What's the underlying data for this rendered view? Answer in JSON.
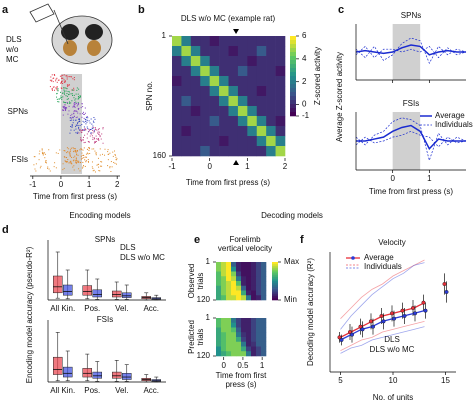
{
  "chart_data": [
    {
      "type": "raster",
      "panel": "a",
      "group_label": [
        "DLS",
        "w/o",
        "MC"
      ],
      "row_labels": [
        "SPNs",
        "FSIs"
      ],
      "xlabel": "Time from first press (s)",
      "xlim": [
        -1.1,
        2.1
      ],
      "xticks": [
        -1,
        0,
        1,
        2
      ],
      "shaded": [
        0,
        0.75
      ]
    },
    {
      "type": "heatmap",
      "panel": "b",
      "title": "DLS w/o MC (example rat)",
      "ylabel": "SPN no.",
      "xlabel": "Time from first press (s)",
      "xlim": [
        -1,
        2
      ],
      "xticks": [
        -1,
        0,
        1,
        2
      ],
      "ylim": [
        1,
        160
      ],
      "yticks": [
        1,
        160
      ],
      "marker_x": 0.7,
      "clabel": "Z-scored activity",
      "clim": [
        -1,
        6
      ],
      "cticks": [
        -1,
        0,
        2,
        4,
        6
      ],
      "z": [
        [
          5,
          2,
          0,
          0,
          -0.5,
          0,
          0,
          0,
          0,
          0,
          0,
          0
        ],
        [
          2,
          5,
          2,
          0,
          0,
          0,
          -0.5,
          0,
          0,
          1,
          0,
          0
        ],
        [
          0,
          2,
          5,
          2,
          0,
          0,
          0,
          0,
          -0.5,
          0,
          0,
          0
        ],
        [
          0,
          0,
          2,
          5,
          2,
          0,
          0,
          1,
          0,
          0,
          0,
          -0.5
        ],
        [
          -0.5,
          0,
          0,
          2,
          5,
          2,
          0,
          0,
          0,
          0,
          0,
          0
        ],
        [
          0,
          0,
          0,
          0,
          2,
          5,
          2,
          0,
          0,
          -0.5,
          0,
          0
        ],
        [
          0,
          1,
          0,
          0,
          0,
          2,
          5,
          2,
          0,
          0,
          0,
          0
        ],
        [
          0,
          0,
          -0.5,
          0,
          0,
          0,
          2,
          5,
          2,
          0,
          0,
          0
        ],
        [
          0,
          0,
          0,
          0,
          1,
          0,
          0,
          2,
          5,
          2,
          0,
          -0.5
        ],
        [
          0,
          -0.5,
          0,
          0,
          0,
          0,
          0,
          0,
          2,
          5,
          2,
          0
        ],
        [
          0,
          0,
          0,
          0,
          0,
          -0.5,
          0,
          0,
          0,
          2,
          5,
          2
        ],
        [
          0,
          0,
          0,
          1,
          0,
          0,
          0,
          0,
          0,
          0,
          2,
          5
        ]
      ]
    },
    {
      "type": "line",
      "panel": "c",
      "ylabel": "Average Z-scored activity",
      "xlabel": "Time from first press (s)",
      "xlim": [
        -1,
        2
      ],
      "xticks": [
        0,
        1
      ],
      "shaded": [
        0,
        0.75
      ],
      "x": [
        -1,
        -0.75,
        -0.5,
        -0.25,
        0,
        0.25,
        0.5,
        0.75,
        1,
        1.25,
        1.5,
        1.75,
        2
      ],
      "subplots": [
        {
          "title": "SPNs",
          "ylim": [
            -1,
            1
          ],
          "series": [
            {
              "color": "#1a2bd0",
              "style": "solid",
              "values": [
                0,
                0.05,
                0,
                -0.05,
                0,
                0.15,
                0.25,
                0.2,
                -0.1,
                0,
                0.05,
                0,
                0
              ]
            },
            {
              "color": "#1a2bd0",
              "style": "dashed",
              "values": [
                0.1,
                -0.2,
                0.2,
                -0.3,
                -0.1,
                0.3,
                0.5,
                0.4,
                -0.4,
                0.2,
                -0.1,
                0.1,
                0
              ]
            },
            {
              "color": "#1a2bd0",
              "style": "dashed",
              "values": [
                -0.1,
                0.2,
                -0.2,
                0.1,
                0.1,
                0,
                0.1,
                0,
                0.2,
                -0.2,
                0.15,
                -0.1,
                0
              ]
            }
          ]
        },
        {
          "title": "FSIs",
          "ylim": [
            -1.5,
            1.5
          ],
          "series": [
            {
              "name": "Average",
              "color": "#1a2bd0",
              "style": "solid",
              "values": [
                0,
                0,
                0.1,
                0.2,
                0.5,
                0.7,
                0.8,
                0.5,
                -0.4,
                0.1,
                0,
                0,
                0
              ]
            },
            {
              "name": "Individuals",
              "color": "#1a2bd0",
              "style": "dashed",
              "values": [
                0.2,
                -0.2,
                0.3,
                0.5,
                1.0,
                1.2,
                1.1,
                0.8,
                -1.0,
                0.4,
                -0.2,
                0.2,
                0
              ]
            },
            {
              "color": "#1a2bd0",
              "style": "dashed",
              "values": [
                -0.2,
                0.2,
                -0.1,
                0,
                0.2,
                0.3,
                0.5,
                0.3,
                0.2,
                -0.3,
                0.2,
                -0.1,
                0
              ]
            }
          ]
        }
      ]
    },
    {
      "type": "box",
      "panel": "d",
      "section": "Encoding models",
      "ylabel": "Encoding model accuracy (pseudo-R²)",
      "ylim": [
        0,
        1
      ],
      "categories": [
        "All Kin.",
        "Pos.",
        "Vel.",
        "Acc."
      ],
      "subplots": [
        {
          "title": "SPNs",
          "series": [
            {
              "name": "DLS",
              "color": "#e8404a",
              "boxes": [
                [
                  0.03,
                  0.12,
                  0.22,
                  0.4,
                  0.8
                ],
                [
                  0.02,
                  0.08,
                  0.14,
                  0.24,
                  0.5
                ],
                [
                  0.01,
                  0.05,
                  0.09,
                  0.15,
                  0.3
                ],
                [
                  0,
                  0.02,
                  0.04,
                  0.06,
                  0.12
                ]
              ]
            },
            {
              "name": "DLS w/o MC",
              "color": "#3b4be0",
              "boxes": [
                [
                  0.02,
                  0.08,
                  0.14,
                  0.25,
                  0.5
                ],
                [
                  0.01,
                  0.05,
                  0.09,
                  0.17,
                  0.35
                ],
                [
                  0.01,
                  0.04,
                  0.07,
                  0.12,
                  0.25
                ],
                [
                  0,
                  0.01,
                  0.02,
                  0.04,
                  0.08
                ]
              ]
            }
          ]
        },
        {
          "title": "FSIs",
          "series": [
            {
              "color": "#e8404a",
              "boxes": [
                [
                  0.02,
                  0.12,
                  0.2,
                  0.4,
                  0.8
                ],
                [
                  0.02,
                  0.08,
                  0.14,
                  0.22,
                  0.45
                ],
                [
                  0.01,
                  0.06,
                  0.1,
                  0.16,
                  0.35
                ],
                [
                  0,
                  0.02,
                  0.04,
                  0.06,
                  0.12
                ]
              ]
            },
            {
              "color": "#3b4be0",
              "boxes": [
                [
                  0.02,
                  0.08,
                  0.14,
                  0.24,
                  0.5
                ],
                [
                  0.01,
                  0.06,
                  0.1,
                  0.16,
                  0.33
                ],
                [
                  0.01,
                  0.04,
                  0.08,
                  0.14,
                  0.28
                ],
                [
                  0,
                  0.01,
                  0.02,
                  0.04,
                  0.08
                ]
              ]
            }
          ]
        }
      ]
    },
    {
      "type": "heatmap-stack",
      "panel": "e",
      "section": "Decoding models",
      "title": [
        "Forelimb",
        "vertical velocity"
      ],
      "xlabel": [
        "Time from first",
        "press (s)"
      ],
      "xlim": [
        -0.2,
        1.1
      ],
      "xticks": [
        0,
        0.5,
        1
      ],
      "ylim": [
        1,
        120
      ],
      "yticks": [
        1,
        120
      ],
      "clim": [
        0,
        1
      ],
      "cticks": [
        {
          "value": 1,
          "label": "Max"
        },
        {
          "value": 0,
          "label": "Min"
        }
      ],
      "subplots": [
        {
          "ylabel": [
            "Observed",
            "trials"
          ],
          "z": [
            [
              0.8,
              0.9,
              1,
              0.3,
              0.1,
              0.05,
              0.05,
              0.1,
              0.2,
              0.3
            ],
            [
              0.8,
              0.9,
              1,
              0.5,
              0.1,
              0.05,
              0.05,
              0.1,
              0.2,
              0.3
            ],
            [
              0.7,
              0.9,
              1,
              0.8,
              0.2,
              0.05,
              0.05,
              0.1,
              0.2,
              0.3
            ],
            [
              0.7,
              0.8,
              1,
              0.9,
              0.4,
              0.1,
              0.05,
              0.1,
              0.2,
              0.3
            ],
            [
              0.7,
              0.8,
              0.9,
              1,
              0.7,
              0.1,
              0.05,
              0.1,
              0.2,
              0.3
            ],
            [
              0.6,
              0.8,
              0.9,
              1,
              0.9,
              0.3,
              0.05,
              0.1,
              0.2,
              0.3
            ],
            [
              0.6,
              0.8,
              0.9,
              1,
              1,
              0.6,
              0.1,
              0.05,
              0.2,
              0.3
            ],
            [
              0.6,
              0.7,
              0.9,
              0.9,
              1,
              0.9,
              0.4,
              0.05,
              0.1,
              0.3
            ]
          ]
        },
        {
          "ylabel": [
            "Predicted",
            "trials"
          ],
          "z": [
            [
              0.7,
              0.8,
              0.8,
              0.4,
              0.2,
              0.1,
              0.1,
              0.2,
              0.3,
              0.3
            ],
            [
              0.7,
              0.8,
              0.8,
              0.5,
              0.2,
              0.1,
              0.1,
              0.2,
              0.3,
              0.3
            ],
            [
              0.6,
              0.8,
              0.8,
              0.7,
              0.3,
              0.1,
              0.1,
              0.2,
              0.3,
              0.3
            ],
            [
              0.6,
              0.7,
              0.8,
              0.8,
              0.4,
              0.15,
              0.1,
              0.2,
              0.3,
              0.3
            ],
            [
              0.6,
              0.7,
              0.8,
              0.8,
              0.6,
              0.2,
              0.1,
              0.2,
              0.3,
              0.3
            ],
            [
              0.6,
              0.7,
              0.8,
              0.8,
              0.8,
              0.4,
              0.1,
              0.15,
              0.3,
              0.3
            ],
            [
              0.5,
              0.7,
              0.8,
              0.8,
              0.8,
              0.6,
              0.2,
              0.1,
              0.2,
              0.3
            ],
            [
              0.5,
              0.6,
              0.7,
              0.8,
              0.8,
              0.8,
              0.4,
              0.1,
              0.2,
              0.3
            ]
          ]
        }
      ]
    },
    {
      "type": "errorbar-line",
      "panel": "f",
      "title": "Velocity",
      "ylabel": "Decoding model accuracy (R²)",
      "xlabel": "No. of units",
      "legend": [
        "Average",
        "Individuals"
      ],
      "xlim": [
        4,
        16
      ],
      "xticks": [
        5,
        10,
        15
      ],
      "ylim": [
        0,
        0.45
      ],
      "x": [
        5,
        6,
        7,
        8,
        9,
        10,
        11,
        12,
        13,
        14,
        15
      ],
      "series": [
        {
          "name": "DLS",
          "color": "#e8303a",
          "values": [
            0.13,
            0.15,
            0.17,
            0.19,
            0.21,
            0.22,
            0.23,
            0.24,
            0.26,
            null,
            0.33
          ],
          "errors": [
            0.02,
            0.03,
            0.03,
            0.03,
            0.03,
            0.03,
            0.03,
            0.03,
            0.03,
            null,
            0.04
          ],
          "individuals": [
            [
              0.2,
              0.24,
              0.28,
              0.31,
              0.33,
              0.36,
              0.38,
              0.4,
              0.42,
              null,
              null
            ],
            [
              0.08,
              0.1,
              0.12,
              0.13,
              0.15,
              0.16,
              0.17,
              0.18,
              0.19,
              null,
              null
            ]
          ]
        },
        {
          "name": "DLS w/o MC",
          "color": "#2b3bd6",
          "values": [
            0.12,
            0.14,
            0.16,
            0.17,
            0.19,
            0.2,
            0.21,
            0.22,
            0.23,
            null,
            0.3
          ],
          "errors": [
            0.02,
            0.03,
            0.03,
            0.03,
            0.03,
            0.03,
            0.03,
            0.03,
            0.03,
            null,
            0.04
          ],
          "individuals": [
            [
              0.16,
              0.21,
              0.25,
              0.29,
              0.32,
              0.35,
              0.37,
              0.4,
              0.41,
              null,
              null
            ],
            [
              0.07,
              0.09,
              0.1,
              0.12,
              0.13,
              0.14,
              0.15,
              0.16,
              0.17,
              null,
              null
            ]
          ]
        }
      ]
    }
  ]
}
